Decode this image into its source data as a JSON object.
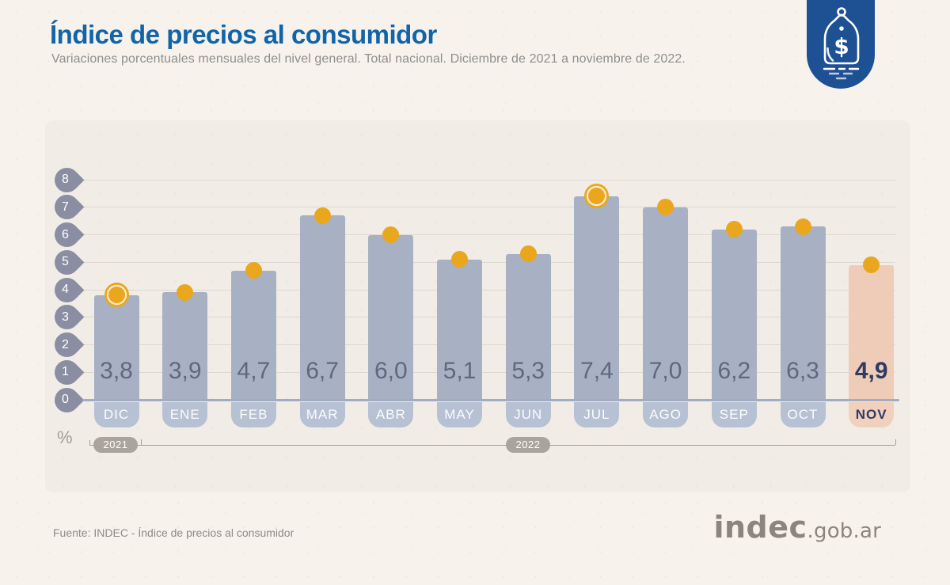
{
  "header": {
    "title": "Índice de precios al consumidor",
    "subtitle": "Variaciones porcentuales mensuales del nivel general. Total nacional. Diciembre de 2021 a noviembre de 2022."
  },
  "brand": {
    "badge_icon": "price-tag-icon",
    "badge_color": "#1e5094"
  },
  "chart_data": {
    "type": "bar",
    "title": "Índice de precios al consumidor",
    "categories": [
      "DIC",
      "ENE",
      "FEB",
      "MAR",
      "ABR",
      "MAY",
      "JUN",
      "JUL",
      "AGO",
      "SEP",
      "OCT",
      "NOV"
    ],
    "values": [
      3.8,
      3.9,
      4.7,
      6.7,
      6.0,
      5.1,
      5.3,
      7.4,
      7.0,
      6.2,
      6.3,
      4.9
    ],
    "value_labels": [
      "3,8",
      "3,9",
      "4,7",
      "6,7",
      "6,0",
      "5,1",
      "5,3",
      "7,4",
      "7,0",
      "6,2",
      "6,3",
      "4,9"
    ],
    "ylabel": "%",
    "yticks": [
      0,
      1,
      2,
      3,
      4,
      5,
      6,
      7,
      8
    ],
    "ylim": [
      0,
      8
    ],
    "grid": true,
    "legend": false,
    "year_groups": [
      {
        "label": "2021",
        "categories": [
          "DIC"
        ]
      },
      {
        "label": "2022",
        "categories": [
          "ENE",
          "FEB",
          "MAR",
          "ABR",
          "MAY",
          "JUN",
          "JUL",
          "AGO",
          "SEP",
          "OCT",
          "NOV"
        ]
      }
    ],
    "highlight_category": "NOV",
    "ring_marker_categories": [
      "DIC",
      "JUL"
    ],
    "colors": {
      "bar": "#a7b1c3",
      "bar_highlight": "#efccb7",
      "marker": "#eaa71d",
      "value_label": "#5e6880",
      "value_label_highlight": "#2e3b63",
      "month_pill": "#b6c1d3",
      "month_pill_highlight": "#f1d1bd",
      "axis_marker": "#8b8da3",
      "gridline": "#dcd8d0",
      "baseline": "#a2acc0",
      "year_pill": "#a9a59c"
    }
  },
  "footer": {
    "source": "Fuente: INDEC - Índice de precios al consumidor",
    "logo": "indec",
    "logo_suffix": ".gob.ar"
  }
}
